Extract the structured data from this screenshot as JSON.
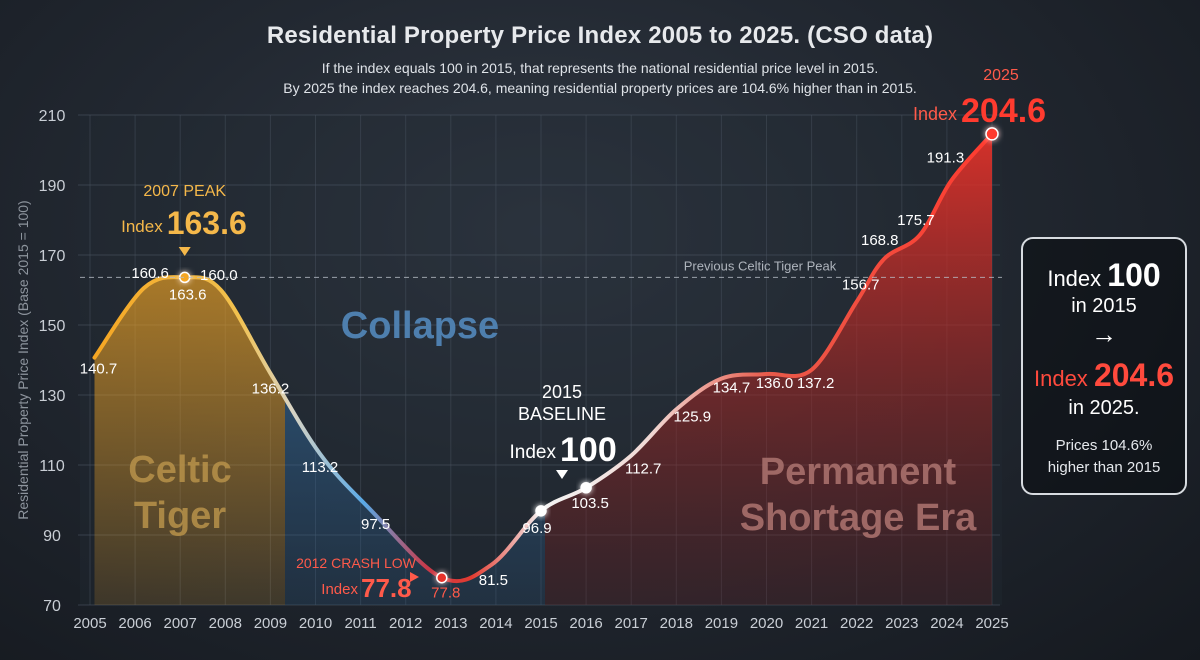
{
  "chart_data": {
    "type": "area",
    "title": "Residential Property Price Index 2005 to 2025. (CSO data)",
    "subtitle_lines": [
      "If the index equals 100 in 2015, that represents the national residential price level in 2015.",
      "By 2025 the index reaches 204.6, meaning residential property prices are 104.6% higher than in 2015."
    ],
    "ylabel": "Residential Property Price Index (Base 2015 = 100)",
    "xlabel": "",
    "ylim": [
      70,
      210
    ],
    "yticks": [
      70,
      90,
      110,
      130,
      150,
      170,
      190,
      210
    ],
    "xticks": [
      "2005",
      "2006",
      "2007",
      "2008",
      "2009",
      "2010",
      "2011",
      "2012",
      "2013",
      "2014",
      "2015",
      "2016",
      "2017",
      "2018",
      "2019",
      "2020",
      "2021",
      "2022",
      "2023",
      "2024",
      "2025"
    ],
    "grid": true,
    "points": [
      {
        "x": 2005.1,
        "y": 140.7,
        "label": "140.7"
      },
      {
        "x": 2006.2,
        "y": 160.6,
        "label": "160.6"
      },
      {
        "x": 2007.1,
        "y": 163.6,
        "label": "163.6"
      },
      {
        "x": 2007.9,
        "y": 160.0,
        "label": "160.0"
      },
      {
        "x": 2009.0,
        "y": 136.2,
        "label": "136.2"
      },
      {
        "x": 2010.1,
        "y": 113.2,
        "label": "113.2"
      },
      {
        "x": 2011.2,
        "y": 97.5,
        "label": "97.5"
      },
      {
        "x": 2012.8,
        "y": 77.8,
        "label": "77.8"
      },
      {
        "x": 2013.9,
        "y": 81.5,
        "label": "81.5"
      },
      {
        "x": 2015.0,
        "y": 96.9,
        "label": "96.9"
      },
      {
        "x": 2016.0,
        "y": 103.5,
        "label": "103.5"
      },
      {
        "x": 2017.0,
        "y": 112.7,
        "label": "112.7"
      },
      {
        "x": 2018.0,
        "y": 125.9,
        "label": "125.9"
      },
      {
        "x": 2019.0,
        "y": 134.7,
        "label": "134.7"
      },
      {
        "x": 2020.0,
        "y": 136.0,
        "label": "136.0"
      },
      {
        "x": 2021.0,
        "y": 137.2,
        "label": "137.2"
      },
      {
        "x": 2022.0,
        "y": 156.7,
        "label": "156.7"
      },
      {
        "x": 2022.6,
        "y": 168.8,
        "label": "168.8"
      },
      {
        "x": 2023.4,
        "y": 175.7,
        "label": "175.7"
      },
      {
        "x": 2024.1,
        "y": 191.3,
        "label": "191.3"
      },
      {
        "x": 2025.0,
        "y": 204.6,
        "label": "204.6"
      }
    ],
    "reference_line": {
      "y": 163.6,
      "label": "Previous Celtic Tiger Peak"
    },
    "eras": [
      "Celtic Tiger",
      "Collapse",
      "Permanent Shortage Era"
    ],
    "annotations": {
      "peak": {
        "top": "2007 PEAK",
        "prefix": "Index",
        "value": "163.6"
      },
      "crash": {
        "top": "2012 CRASH LOW",
        "prefix": "Index",
        "value": "77.8"
      },
      "baseline": {
        "top1": "2015",
        "top2": "BASELINE",
        "prefix": "Index",
        "value": "100"
      },
      "end": {
        "top": "2025",
        "prefix": "Index",
        "value": "204.6"
      }
    },
    "colors": {
      "orange": "#f5a623",
      "blue": "#5aa9e6",
      "red": "#e8322a",
      "white": "#ffffff"
    }
  },
  "panel": {
    "l1_prefix": "Index",
    "l1_value": "100",
    "l2": "in 2015",
    "arrow": "→",
    "l3_prefix": "Index",
    "l3_value": "204.6",
    "l4": "in 2025.",
    "l5a": "Prices 104.6%",
    "l5b": "higher than 2015"
  }
}
